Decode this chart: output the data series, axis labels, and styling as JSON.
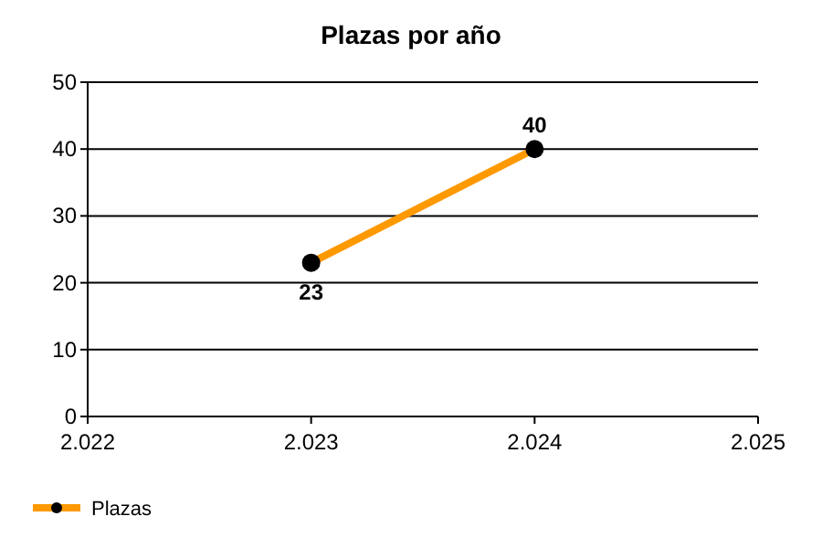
{
  "chart_data": {
    "type": "line",
    "title": "Plazas por año",
    "x": [
      2023,
      2024
    ],
    "series": [
      {
        "name": "Plazas",
        "color": "#ff9900",
        "values": [
          23,
          40
        ]
      }
    ],
    "xlim": [
      2022,
      2025
    ],
    "xticks": [
      {
        "value": 2022,
        "label": "2.022"
      },
      {
        "value": 2023,
        "label": "2.023"
      },
      {
        "value": 2024,
        "label": "2.024"
      },
      {
        "value": 2025,
        "label": "2.025"
      }
    ],
    "ylim": [
      0,
      50
    ],
    "yticks": [
      0,
      10,
      20,
      30,
      40,
      50
    ],
    "grid": "y",
    "legend": "bottom left",
    "marker": "circle",
    "data_labels": true
  }
}
